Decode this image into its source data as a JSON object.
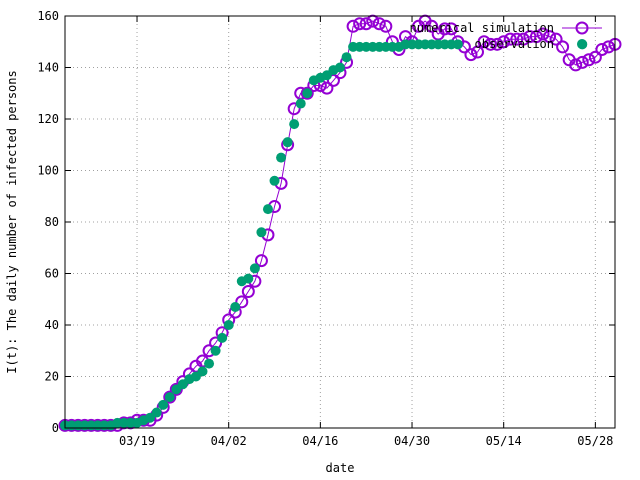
{
  "chart_data": {
    "type": "scatter",
    "xlabel": "date",
    "ylabel": "I(t): The daily number of infected persons",
    "x_ticks": [
      "03/19",
      "04/02",
      "04/16",
      "04/30",
      "05/14",
      "05/28"
    ],
    "y_ticks": [
      0,
      20,
      40,
      60,
      80,
      100,
      120,
      140,
      160
    ],
    "ylim": [
      0,
      160
    ],
    "x_range": [
      "03/08",
      "05/31"
    ],
    "grid": true,
    "legend_position": "top-right",
    "series": [
      {
        "name": "numerical simulation",
        "color": "#9400d3",
        "marker": "open-circle",
        "line": true,
        "x": [
          "03/08",
          "03/09",
          "03/10",
          "03/11",
          "03/12",
          "03/13",
          "03/14",
          "03/15",
          "03/16",
          "03/17",
          "03/18",
          "03/19",
          "03/20",
          "03/21",
          "03/22",
          "03/23",
          "03/24",
          "03/25",
          "03/26",
          "03/27",
          "03/28",
          "03/29",
          "03/30",
          "03/31",
          "04/01",
          "04/02",
          "04/03",
          "04/04",
          "04/05",
          "04/06",
          "04/07",
          "04/08",
          "04/09",
          "04/10",
          "04/11",
          "04/12",
          "04/13",
          "04/14",
          "04/15",
          "04/16",
          "04/17",
          "04/18",
          "04/19",
          "04/20",
          "04/21",
          "04/22",
          "04/23",
          "04/24",
          "04/25",
          "04/26",
          "04/27",
          "04/28",
          "04/29",
          "04/30",
          "05/01",
          "05/02",
          "05/03",
          "05/04",
          "05/05",
          "05/06",
          "05/07",
          "05/08",
          "05/09",
          "05/10",
          "05/11",
          "05/12",
          "05/13",
          "05/14",
          "05/15",
          "05/16",
          "05/17",
          "05/18",
          "05/19",
          "05/20",
          "05/21",
          "05/22",
          "05/23",
          "05/24",
          "05/25",
          "05/26",
          "05/27",
          "05/28",
          "05/29",
          "05/30",
          "05/31"
        ],
        "values": [
          1,
          1,
          1,
          1,
          1,
          1,
          1,
          1,
          1,
          2,
          2,
          3,
          3,
          3,
          5,
          8,
          12,
          15,
          18,
          21,
          24,
          26,
          30,
          33,
          37,
          42,
          45,
          49,
          53,
          57,
          65,
          75,
          86,
          95,
          110,
          124,
          130,
          130,
          133,
          133,
          132,
          135,
          138,
          142,
          156,
          157,
          157,
          158,
          157,
          156,
          150,
          147,
          152,
          150,
          156,
          158,
          156,
          153,
          155,
          155,
          150,
          148,
          145,
          146,
          150,
          149,
          149,
          150,
          151,
          151,
          151,
          152,
          152,
          153,
          152,
          151,
          148,
          143,
          141,
          142,
          143,
          144,
          147,
          148,
          149
        ]
      },
      {
        "name": "observation",
        "color": "#009e73",
        "marker": "filled-circle",
        "line": false,
        "x": [
          "03/08",
          "03/09",
          "03/10",
          "03/11",
          "03/12",
          "03/13",
          "03/14",
          "03/15",
          "03/16",
          "03/17",
          "03/18",
          "03/19",
          "03/20",
          "03/21",
          "03/22",
          "03/23",
          "03/24",
          "03/25",
          "03/26",
          "03/27",
          "03/28",
          "03/29",
          "03/30",
          "03/31",
          "04/01",
          "04/02",
          "04/03",
          "04/04",
          "04/05",
          "04/06",
          "04/07",
          "04/08",
          "04/09",
          "04/10",
          "04/11",
          "04/12",
          "04/13",
          "04/14",
          "04/15",
          "04/16",
          "04/17",
          "04/18",
          "04/19",
          "04/20",
          "04/21",
          "04/22",
          "04/23",
          "04/24",
          "04/25",
          "04/26",
          "04/27",
          "04/28",
          "04/29",
          "04/30",
          "05/01",
          "05/02",
          "05/03",
          "05/04",
          "05/05",
          "05/06",
          "05/07",
          "05/26"
        ],
        "values": [
          1,
          1,
          1,
          1,
          1,
          1,
          1,
          1,
          2,
          2,
          2,
          2,
          3,
          4,
          6,
          9,
          12,
          15,
          17,
          19,
          20,
          22,
          25,
          30,
          35,
          40,
          47,
          57,
          58,
          62,
          76,
          85,
          96,
          105,
          111,
          118,
          126,
          130,
          135,
          136,
          137,
          139,
          140,
          144,
          148,
          148,
          148,
          148,
          148,
          148,
          148,
          148,
          149,
          149,
          149,
          149,
          149,
          149,
          149,
          149,
          149,
          149
        ]
      }
    ]
  }
}
